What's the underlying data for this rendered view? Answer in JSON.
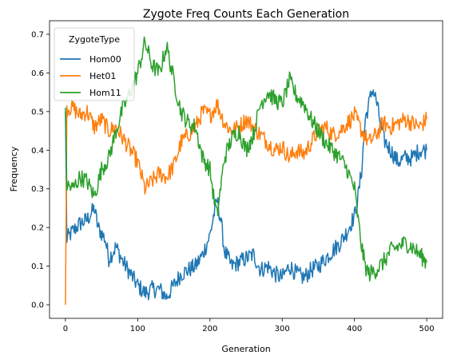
{
  "chart_data": {
    "type": "line",
    "title": "Zygote Freq Counts Each Generation",
    "xlabel": "Generation",
    "ylabel": "Frequency",
    "xlim": [
      -22,
      522
    ],
    "ylim": [
      -0.035,
      0.735
    ],
    "xticks": [
      "0",
      "100",
      "200",
      "300",
      "400",
      "500"
    ],
    "yticks": [
      "0.0",
      "0.1",
      "0.2",
      "0.3",
      "0.4",
      "0.5",
      "0.6",
      "0.7"
    ],
    "legend": {
      "title": "ZygoteType",
      "position": "top-left"
    },
    "series": [
      {
        "name": "Hom00",
        "color": "#1f77b4",
        "points": [
          [
            0,
            0.5
          ],
          [
            2,
            0.17
          ],
          [
            10,
            0.19
          ],
          [
            20,
            0.21
          ],
          [
            30,
            0.22
          ],
          [
            40,
            0.25
          ],
          [
            45,
            0.2
          ],
          [
            55,
            0.17
          ],
          [
            60,
            0.12
          ],
          [
            70,
            0.15
          ],
          [
            80,
            0.11
          ],
          [
            90,
            0.08
          ],
          [
            100,
            0.05
          ],
          [
            110,
            0.03
          ],
          [
            120,
            0.04
          ],
          [
            130,
            0.04
          ],
          [
            140,
            0.02
          ],
          [
            150,
            0.05
          ],
          [
            160,
            0.08
          ],
          [
            170,
            0.09
          ],
          [
            180,
            0.1
          ],
          [
            190,
            0.13
          ],
          [
            200,
            0.18
          ],
          [
            205,
            0.23
          ],
          [
            210,
            0.27
          ],
          [
            215,
            0.22
          ],
          [
            220,
            0.14
          ],
          [
            230,
            0.1
          ],
          [
            240,
            0.11
          ],
          [
            250,
            0.12
          ],
          [
            260,
            0.13
          ],
          [
            270,
            0.09
          ],
          [
            280,
            0.1
          ],
          [
            290,
            0.08
          ],
          [
            300,
            0.07
          ],
          [
            310,
            0.1
          ],
          [
            320,
            0.08
          ],
          [
            330,
            0.07
          ],
          [
            340,
            0.09
          ],
          [
            350,
            0.1
          ],
          [
            360,
            0.12
          ],
          [
            370,
            0.14
          ],
          [
            380,
            0.16
          ],
          [
            390,
            0.19
          ],
          [
            400,
            0.23
          ],
          [
            405,
            0.28
          ],
          [
            410,
            0.35
          ],
          [
            415,
            0.48
          ],
          [
            420,
            0.52
          ],
          [
            425,
            0.56
          ],
          [
            430,
            0.53
          ],
          [
            440,
            0.43
          ],
          [
            450,
            0.4
          ],
          [
            460,
            0.37
          ],
          [
            470,
            0.38
          ],
          [
            480,
            0.38
          ],
          [
            490,
            0.4
          ],
          [
            500,
            0.4
          ]
        ]
      },
      {
        "name": "Het01",
        "color": "#ff7f0e",
        "points": [
          [
            0,
            0.0
          ],
          [
            2,
            0.51
          ],
          [
            10,
            0.51
          ],
          [
            20,
            0.49
          ],
          [
            30,
            0.5
          ],
          [
            40,
            0.46
          ],
          [
            50,
            0.48
          ],
          [
            60,
            0.45
          ],
          [
            70,
            0.46
          ],
          [
            80,
            0.43
          ],
          [
            90,
            0.4
          ],
          [
            100,
            0.37
          ],
          [
            110,
            0.3
          ],
          [
            120,
            0.32
          ],
          [
            130,
            0.34
          ],
          [
            140,
            0.33
          ],
          [
            150,
            0.36
          ],
          [
            160,
            0.42
          ],
          [
            170,
            0.44
          ],
          [
            180,
            0.46
          ],
          [
            190,
            0.5
          ],
          [
            200,
            0.49
          ],
          [
            210,
            0.52
          ],
          [
            220,
            0.47
          ],
          [
            230,
            0.45
          ],
          [
            240,
            0.46
          ],
          [
            250,
            0.48
          ],
          [
            260,
            0.46
          ],
          [
            270,
            0.44
          ],
          [
            280,
            0.42
          ],
          [
            290,
            0.4
          ],
          [
            300,
            0.41
          ],
          [
            310,
            0.38
          ],
          [
            320,
            0.4
          ],
          [
            330,
            0.39
          ],
          [
            340,
            0.42
          ],
          [
            350,
            0.45
          ],
          [
            360,
            0.46
          ],
          [
            370,
            0.44
          ],
          [
            380,
            0.45
          ],
          [
            390,
            0.47
          ],
          [
            400,
            0.49
          ],
          [
            410,
            0.45
          ],
          [
            420,
            0.42
          ],
          [
            430,
            0.44
          ],
          [
            440,
            0.47
          ],
          [
            450,
            0.46
          ],
          [
            460,
            0.47
          ],
          [
            470,
            0.48
          ],
          [
            480,
            0.47
          ],
          [
            490,
            0.46
          ],
          [
            500,
            0.48
          ]
        ]
      },
      {
        "name": "Hom11",
        "color": "#2ca02c",
        "points": [
          [
            0,
            0.51
          ],
          [
            2,
            0.31
          ],
          [
            10,
            0.3
          ],
          [
            20,
            0.33
          ],
          [
            30,
            0.32
          ],
          [
            40,
            0.28
          ],
          [
            50,
            0.35
          ],
          [
            60,
            0.38
          ],
          [
            70,
            0.45
          ],
          [
            80,
            0.51
          ],
          [
            90,
            0.55
          ],
          [
            100,
            0.6
          ],
          [
            110,
            0.68
          ],
          [
            120,
            0.62
          ],
          [
            130,
            0.6
          ],
          [
            140,
            0.67
          ],
          [
            150,
            0.58
          ],
          [
            160,
            0.5
          ],
          [
            170,
            0.47
          ],
          [
            180,
            0.46
          ],
          [
            190,
            0.38
          ],
          [
            200,
            0.35
          ],
          [
            205,
            0.28
          ],
          [
            210,
            0.23
          ],
          [
            220,
            0.38
          ],
          [
            230,
            0.43
          ],
          [
            240,
            0.45
          ],
          [
            250,
            0.4
          ],
          [
            260,
            0.44
          ],
          [
            270,
            0.52
          ],
          [
            280,
            0.55
          ],
          [
            290,
            0.53
          ],
          [
            300,
            0.52
          ],
          [
            310,
            0.58
          ],
          [
            320,
            0.54
          ],
          [
            330,
            0.52
          ],
          [
            340,
            0.48
          ],
          [
            350,
            0.45
          ],
          [
            360,
            0.42
          ],
          [
            370,
            0.4
          ],
          [
            380,
            0.38
          ],
          [
            390,
            0.35
          ],
          [
            400,
            0.3
          ],
          [
            405,
            0.22
          ],
          [
            410,
            0.15
          ],
          [
            415,
            0.1
          ],
          [
            420,
            0.08
          ],
          [
            430,
            0.09
          ],
          [
            440,
            0.11
          ],
          [
            450,
            0.14
          ],
          [
            460,
            0.15
          ],
          [
            470,
            0.16
          ],
          [
            480,
            0.15
          ],
          [
            490,
            0.13
          ],
          [
            500,
            0.11
          ]
        ]
      }
    ]
  }
}
